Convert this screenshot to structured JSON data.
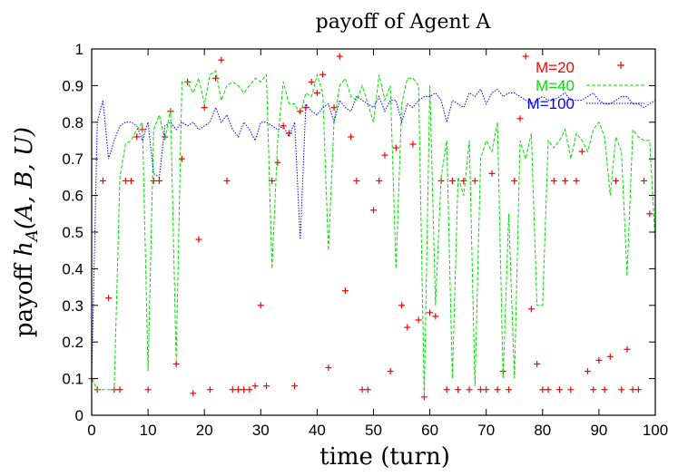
{
  "chart_data": {
    "type": "scatter",
    "title": "payoff of Agent A",
    "xlabel": "time (turn)",
    "ylabel_parts": {
      "prefix": "payoff ",
      "h": "h",
      "sub": "A",
      "args": "(A, B, U)"
    },
    "xlim": [
      0,
      100
    ],
    "ylim": [
      0,
      1
    ],
    "x_ticks": [
      0,
      10,
      20,
      30,
      40,
      50,
      60,
      70,
      80,
      90,
      100
    ],
    "y_ticks": [
      0,
      0.1,
      0.2,
      0.3,
      0.4,
      0.5,
      0.6,
      0.7,
      0.8,
      0.9,
      1
    ],
    "x_tick_labels": [
      "0",
      "10",
      "20",
      "30",
      "40",
      "50",
      "60",
      "70",
      "80",
      "90",
      "100"
    ],
    "y_tick_labels": [
      "0",
      "0.1",
      "0.2",
      "0.3",
      "0.4",
      "0.5",
      "0.6",
      "0.7",
      "0.8",
      "0.9",
      "1"
    ],
    "grid": false,
    "legend_position": "top-right",
    "series": [
      {
        "name": "M=20",
        "style": "points",
        "marker": "plus",
        "color": "#ff0000",
        "points": [
          [
            0,
            0.1
          ],
          [
            1,
            0.07
          ],
          [
            2,
            0.64
          ],
          [
            3,
            0.32
          ],
          [
            4,
            0.07
          ],
          [
            5,
            0.07
          ],
          [
            6,
            0.64
          ],
          [
            7,
            0.64
          ],
          [
            8,
            0.76
          ],
          [
            9,
            0.78
          ],
          [
            10,
            0.07
          ],
          [
            11,
            0.64
          ],
          [
            12,
            0.64
          ],
          [
            13,
            0.76
          ],
          [
            14,
            0.83
          ],
          [
            15,
            0.14
          ],
          [
            16,
            0.7
          ],
          [
            17,
            0.91
          ],
          [
            18,
            0.06
          ],
          [
            19,
            0.48
          ],
          [
            20,
            0.84
          ],
          [
            21,
            0.07
          ],
          [
            22,
            0.92
          ],
          [
            23,
            0.97
          ],
          [
            24,
            0.64
          ],
          [
            25,
            0.07
          ],
          [
            26,
            0.07
          ],
          [
            27,
            0.07
          ],
          [
            28,
            0.07
          ],
          [
            29,
            0.08
          ],
          [
            30,
            0.3
          ],
          [
            31,
            0.08
          ],
          [
            32,
            0.64
          ],
          [
            33,
            0.69
          ],
          [
            34,
            0.79
          ],
          [
            35,
            0.77
          ],
          [
            36,
            0.08
          ],
          [
            37,
            0.83
          ],
          [
            38,
            0.84
          ],
          [
            39,
            0.91
          ],
          [
            40,
            0.88
          ],
          [
            41,
            0.93
          ],
          [
            42,
            0.13
          ],
          [
            43,
            0.84
          ],
          [
            44,
            0.98
          ],
          [
            45,
            0.34
          ],
          [
            46,
            0.76
          ],
          [
            47,
            0.64
          ],
          [
            48,
            0.07
          ],
          [
            49,
            0.07
          ],
          [
            50,
            0.56
          ],
          [
            51,
            0.64
          ],
          [
            52,
            0.71
          ],
          [
            53,
            0.12
          ],
          [
            54,
            0.73
          ],
          [
            55,
            0.3
          ],
          [
            56,
            0.24
          ],
          [
            57,
            0.74
          ],
          [
            58,
            0.26
          ],
          [
            59,
            0.05
          ],
          [
            60,
            0.28
          ],
          [
            61,
            0.27
          ],
          [
            62,
            0.64
          ],
          [
            63,
            0.07
          ],
          [
            64,
            0.64
          ],
          [
            65,
            0.07
          ],
          [
            66,
            0.64
          ],
          [
            67,
            0.07
          ],
          [
            68,
            0.64
          ],
          [
            69,
            0.07
          ],
          [
            70,
            0.07
          ],
          [
            71,
            0.66
          ],
          [
            72,
            0.07
          ],
          [
            73,
            0.12
          ],
          [
            74,
            0.07
          ],
          [
            75,
            0.64
          ],
          [
            76,
            0.81
          ],
          [
            77,
            0.98
          ],
          [
            78,
            0.29
          ],
          [
            79,
            0.14
          ],
          [
            80,
            0.07
          ],
          [
            81,
            0.07
          ],
          [
            82,
            0.64
          ],
          [
            83,
            0.07
          ],
          [
            84,
            0.64
          ],
          [
            85,
            0.07
          ],
          [
            86,
            0.64
          ],
          [
            87,
            0.72
          ],
          [
            88,
            0.12
          ],
          [
            89,
            0.07
          ],
          [
            90,
            0.15
          ],
          [
            91,
            0.07
          ],
          [
            92,
            0.16
          ],
          [
            93,
            0.64
          ],
          [
            94,
            0.07
          ],
          [
            95,
            0.18
          ],
          [
            96,
            0.07
          ],
          [
            97,
            0.07
          ],
          [
            98,
            0.64
          ],
          [
            99,
            0.55
          ]
        ]
      },
      {
        "name": "M=40",
        "style": "dashed",
        "color": "#00e000",
        "x": [
          0,
          1,
          2,
          3,
          4,
          5,
          6,
          7,
          8,
          9,
          10,
          11,
          12,
          13,
          14,
          15,
          16,
          17,
          18,
          19,
          20,
          21,
          22,
          23,
          24,
          25,
          26,
          27,
          28,
          29,
          30,
          31,
          32,
          33,
          34,
          35,
          36,
          37,
          38,
          39,
          40,
          41,
          42,
          43,
          44,
          45,
          46,
          47,
          48,
          49,
          50,
          51,
          52,
          53,
          54,
          55,
          56,
          57,
          58,
          59,
          60,
          61,
          62,
          63,
          64,
          65,
          66,
          67,
          68,
          69,
          70,
          71,
          72,
          73,
          74,
          75,
          76,
          77,
          78,
          79,
          80,
          81,
          82,
          83,
          84,
          85,
          86,
          87,
          88,
          89,
          90,
          91,
          92,
          93,
          94,
          95,
          96,
          97,
          98,
          99,
          100
        ],
        "values": [
          0.1,
          0.07,
          0.07,
          0.07,
          0.07,
          0.65,
          0.74,
          0.75,
          0.78,
          0.8,
          0.12,
          0.78,
          0.82,
          0.75,
          0.84,
          0.15,
          0.91,
          0.91,
          0.88,
          0.92,
          0.85,
          0.93,
          0.94,
          0.86,
          0.9,
          0.91,
          0.9,
          0.88,
          0.9,
          0.92,
          0.91,
          0.93,
          0.4,
          0.75,
          0.91,
          0.85,
          0.85,
          0.82,
          0.88,
          0.87,
          0.93,
          0.88,
          0.45,
          0.8,
          0.9,
          0.92,
          0.87,
          0.86,
          0.9,
          0.85,
          0.8,
          0.93,
          0.86,
          0.9,
          0.4,
          0.85,
          0.92,
          0.92,
          0.9,
          0.05,
          0.9,
          0.3,
          0.65,
          0.75,
          0.1,
          0.65,
          0.6,
          0.75,
          0.08,
          0.7,
          0.75,
          0.72,
          0.8,
          0.1,
          0.55,
          0.1,
          0.75,
          0.7,
          0.77,
          0.3,
          0.3,
          0.75,
          0.73,
          0.75,
          0.78,
          0.7,
          0.77,
          0.75,
          0.72,
          0.78,
          0.8,
          0.76,
          0.6,
          0.76,
          0.72,
          0.38,
          0.78,
          0.76,
          0.75,
          0.75,
          0.47
        ]
      },
      {
        "name": "M=100",
        "style": "dotted",
        "color": "#0000ff",
        "x": [
          0,
          1,
          2,
          3,
          4,
          5,
          6,
          7,
          8,
          9,
          10,
          11,
          12,
          13,
          14,
          15,
          16,
          17,
          18,
          19,
          20,
          21,
          22,
          23,
          24,
          25,
          26,
          27,
          28,
          29,
          30,
          31,
          32,
          33,
          34,
          35,
          36,
          37,
          38,
          39,
          40,
          41,
          42,
          43,
          44,
          45,
          46,
          47,
          48,
          49,
          50,
          51,
          52,
          53,
          54,
          55,
          56,
          57,
          58,
          59,
          60,
          61,
          62,
          63,
          64,
          65,
          66,
          67,
          68,
          69,
          70,
          71,
          72,
          73,
          74,
          75,
          76,
          77,
          78,
          79,
          80,
          81,
          82,
          83,
          84,
          85,
          86,
          87,
          88,
          89,
          90,
          91,
          92,
          93,
          94,
          95,
          96,
          97,
          98,
          99,
          100
        ],
        "values": [
          0.1,
          0.8,
          0.86,
          0.7,
          0.75,
          0.79,
          0.8,
          0.8,
          0.79,
          0.75,
          0.8,
          0.66,
          0.65,
          0.79,
          0.8,
          0.78,
          0.8,
          0.79,
          0.8,
          0.78,
          0.79,
          0.8,
          0.84,
          0.8,
          0.82,
          0.78,
          0.76,
          0.8,
          0.78,
          0.75,
          0.8,
          0.8,
          0.79,
          0.78,
          0.79,
          0.76,
          0.8,
          0.48,
          0.85,
          0.83,
          0.82,
          0.84,
          0.85,
          0.8,
          0.86,
          0.84,
          0.83,
          0.87,
          0.86,
          0.85,
          0.84,
          0.87,
          0.83,
          0.86,
          0.86,
          0.8,
          0.85,
          0.84,
          0.86,
          0.87,
          0.87,
          0.88,
          0.86,
          0.8,
          0.86,
          0.85,
          0.84,
          0.88,
          0.87,
          0.89,
          0.85,
          0.88,
          0.89,
          0.87,
          0.88,
          0.88,
          0.87,
          0.86,
          0.85,
          0.86,
          0.87,
          0.86,
          0.86,
          0.87,
          0.88,
          0.86,
          0.86,
          0.86,
          0.87,
          0.88,
          0.86,
          0.85,
          0.85,
          0.86,
          0.87,
          0.87,
          0.85,
          0.85,
          0.84,
          0.85,
          0.86
        ]
      }
    ]
  }
}
